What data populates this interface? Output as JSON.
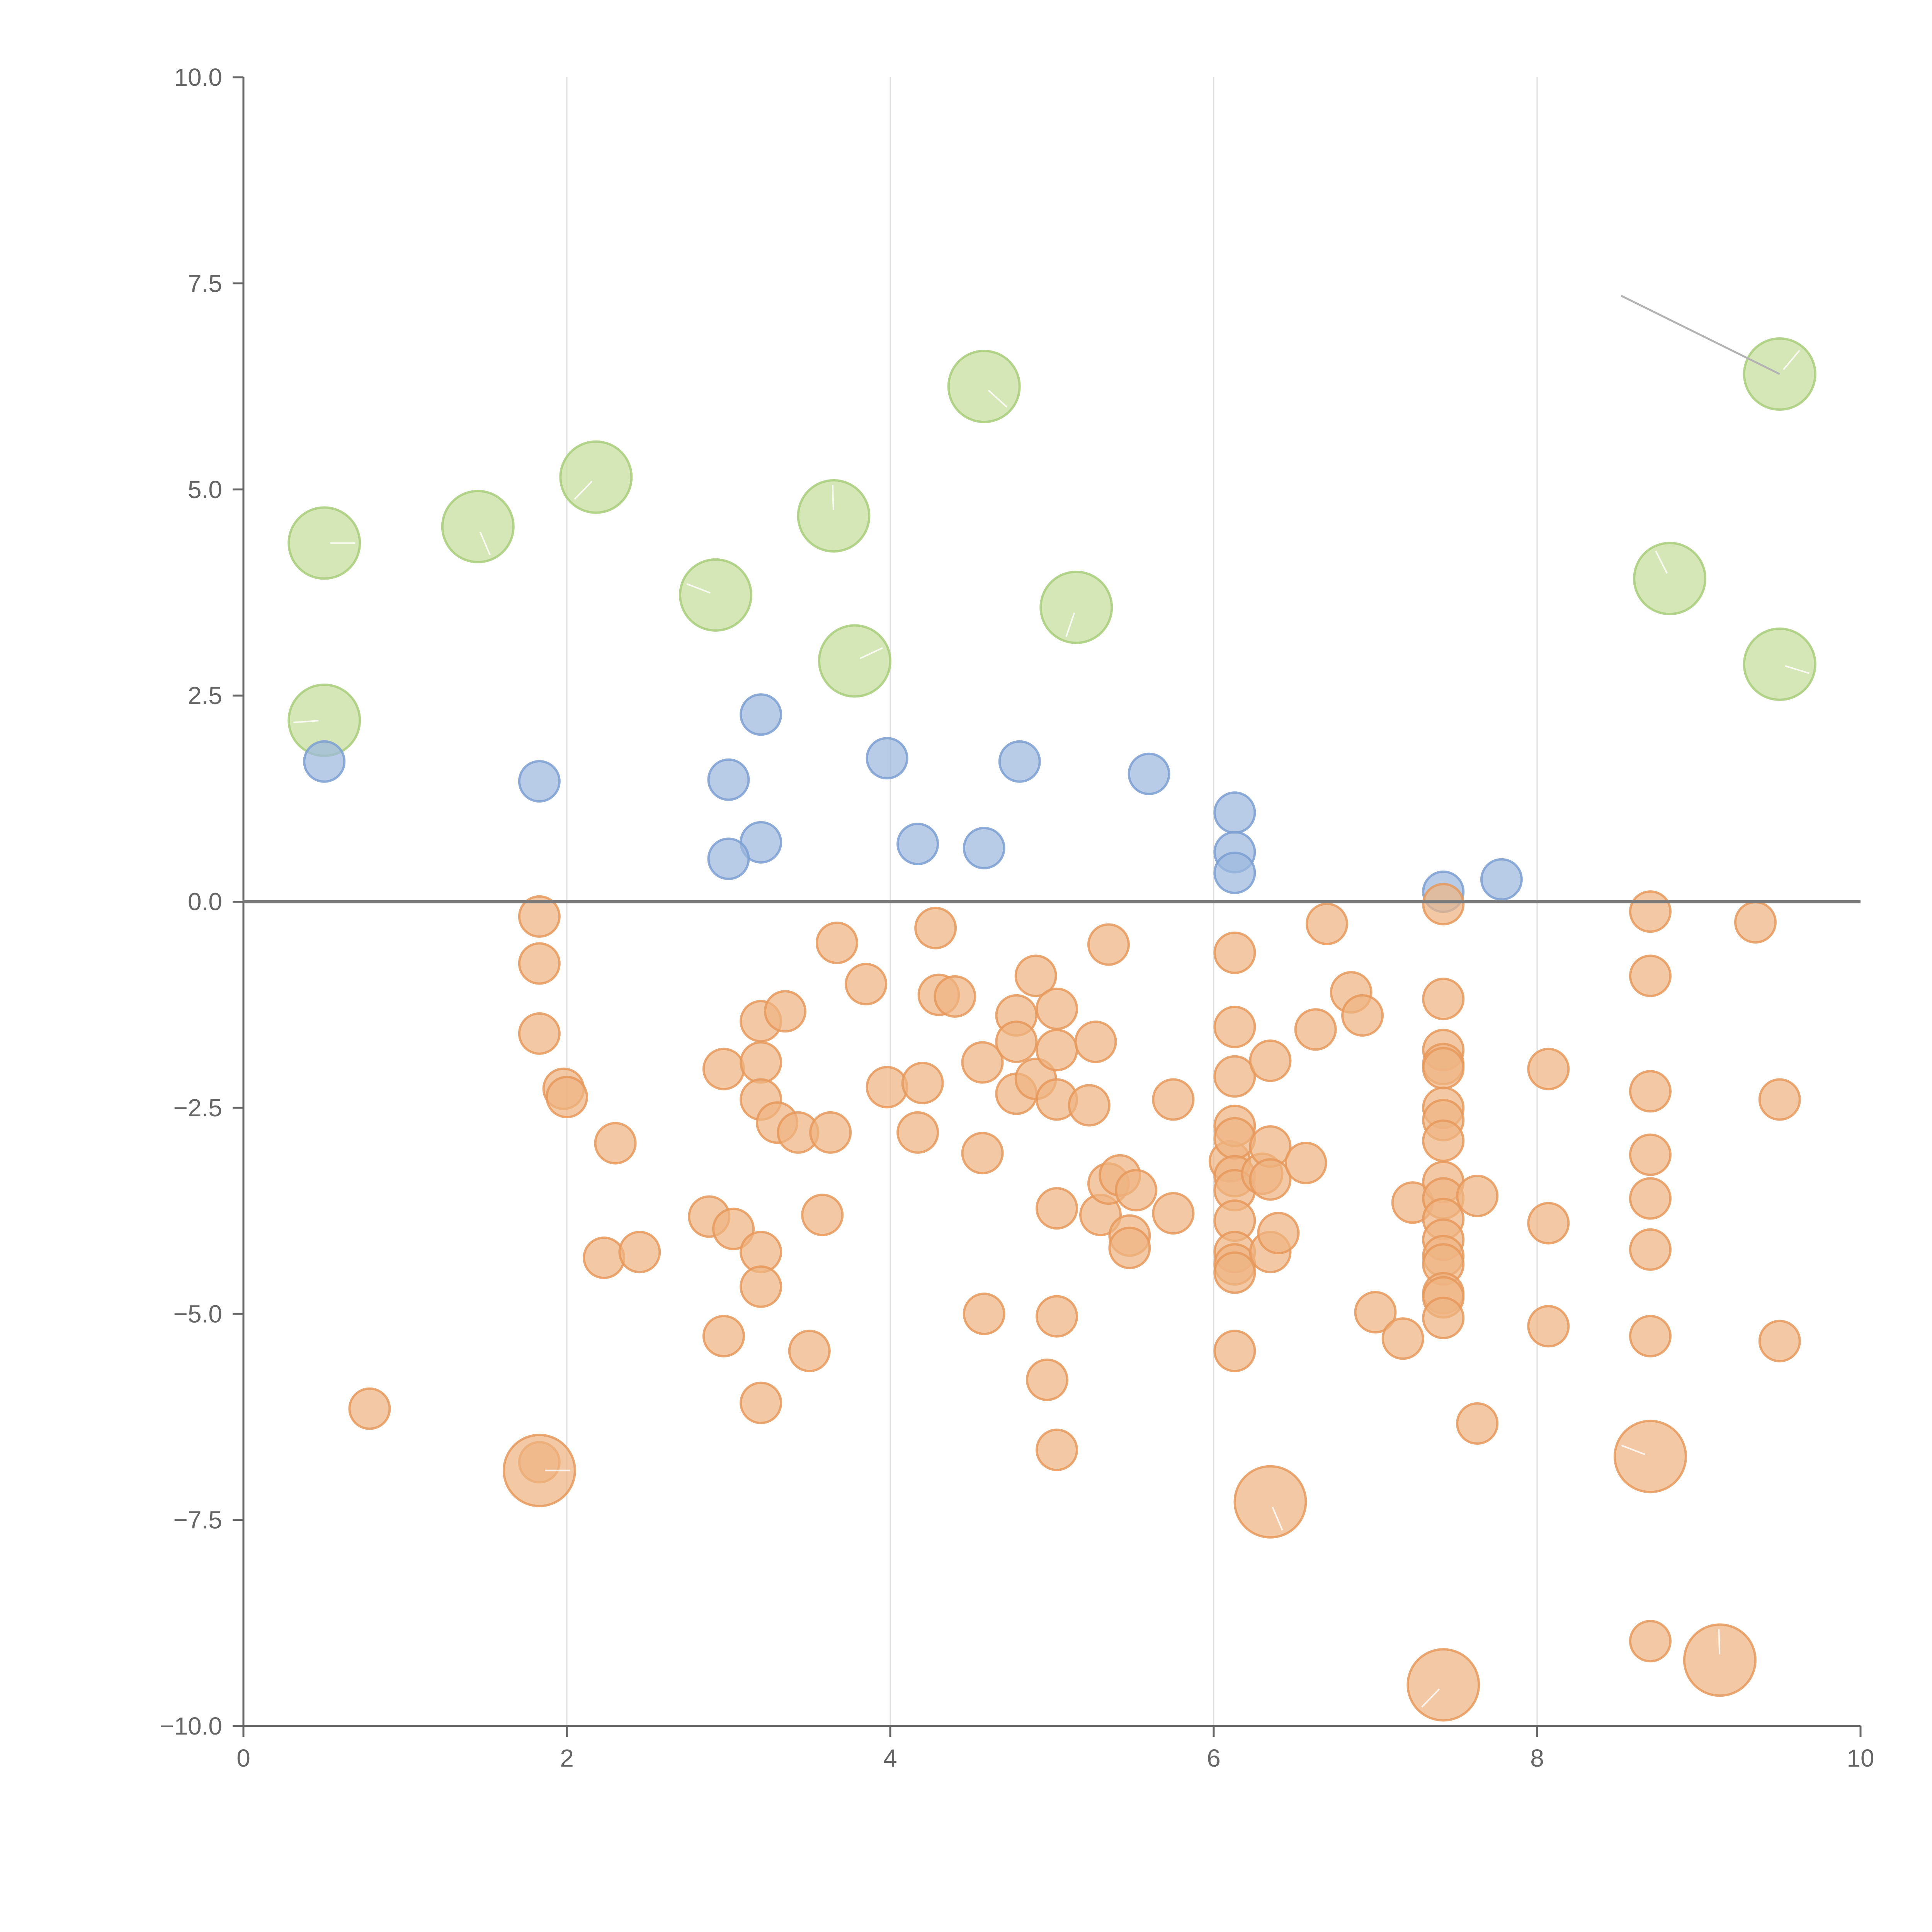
{
  "chart_data": {
    "type": "scatter",
    "title": "",
    "xlabel": "",
    "ylabel": "",
    "xlim": [
      0,
      10
    ],
    "ylim": [
      -10,
      10
    ],
    "x_ticks": [
      0,
      2,
      4,
      6,
      8,
      10
    ],
    "x_tick_labels": [
      "0",
      "2",
      "4",
      "6",
      "8",
      "10"
    ],
    "y_ticks": [
      10,
      7.5,
      5,
      2.5,
      0,
      -2.5,
      -5,
      -7.5,
      -10
    ],
    "y_tick_labels": [
      "10.0",
      "7.5",
      "5.0",
      "2.5",
      "0.0",
      "−2.5",
      "−5.0",
      "−7.5",
      "−10.0"
    ],
    "grid": "vertical lines at x ticks",
    "reference_line": {
      "y": 0
    },
    "annotation_line": {
      "from": [
        8.52,
        7.35
      ],
      "to": [
        9.5,
        6.4
      ]
    },
    "series": [
      {
        "name": "green",
        "color": "#c5dd9b",
        "stroke": "#a8cc7a",
        "size": "large",
        "points": [
          [
            0.5,
            4.35
          ],
          [
            1.45,
            4.55
          ],
          [
            2.18,
            5.15
          ],
          [
            2.92,
            3.72
          ],
          [
            3.65,
            4.68
          ],
          [
            3.78,
            2.92
          ],
          [
            4.58,
            6.25
          ],
          [
            5.15,
            3.57
          ],
          [
            0.5,
            2.2
          ],
          [
            8.82,
            3.92
          ],
          [
            9.5,
            6.4
          ],
          [
            9.5,
            2.88
          ]
        ]
      },
      {
        "name": "blue",
        "color": "#9db8df",
        "stroke": "#7b9fd1",
        "size": "small",
        "points": [
          [
            0.5,
            1.7
          ],
          [
            1.83,
            1.46
          ],
          [
            3.0,
            1.48
          ],
          [
            3.2,
            2.27
          ],
          [
            3.98,
            1.74
          ],
          [
            4.8,
            1.7
          ],
          [
            5.6,
            1.55
          ],
          [
            6.13,
            1.08
          ],
          [
            6.13,
            0.6
          ],
          [
            6.13,
            0.35
          ],
          [
            3.2,
            0.72
          ],
          [
            3.0,
            0.52
          ],
          [
            4.17,
            0.7
          ],
          [
            4.58,
            0.65
          ],
          [
            7.42,
            0.12
          ],
          [
            7.78,
            0.27
          ]
        ]
      },
      {
        "name": "orange",
        "color": "#efb482",
        "stroke": "#e6995c",
        "size": "small",
        "points": [
          [
            1.83,
            -0.18
          ],
          [
            1.83,
            -0.75
          ],
          [
            1.83,
            -1.6
          ],
          [
            1.98,
            -2.27
          ],
          [
            2.0,
            -2.37
          ],
          [
            2.3,
            -2.93
          ],
          [
            0.78,
            -6.15
          ],
          [
            1.83,
            -6.8
          ],
          [
            2.23,
            -4.32
          ],
          [
            2.45,
            -4.25
          ],
          [
            2.88,
            -3.82
          ],
          [
            3.03,
            -3.97
          ],
          [
            2.97,
            -2.03
          ],
          [
            2.97,
            -5.27
          ],
          [
            3.2,
            -4.25
          ],
          [
            3.2,
            -4.67
          ],
          [
            3.2,
            -6.08
          ],
          [
            3.2,
            -1.45
          ],
          [
            3.2,
            -1.95
          ],
          [
            3.2,
            -2.4
          ],
          [
            3.35,
            -1.33
          ],
          [
            3.3,
            -2.68
          ],
          [
            3.43,
            -2.8
          ],
          [
            3.5,
            -5.45
          ],
          [
            3.58,
            -3.8
          ],
          [
            3.63,
            -2.8
          ],
          [
            3.67,
            -0.5
          ],
          [
            3.85,
            -1.0
          ],
          [
            3.98,
            -2.25
          ],
          [
            4.17,
            -2.8
          ],
          [
            4.2,
            -2.2
          ],
          [
            4.28,
            -0.32
          ],
          [
            4.3,
            -1.13
          ],
          [
            4.4,
            -1.15
          ],
          [
            4.57,
            -1.95
          ],
          [
            4.57,
            -3.05
          ],
          [
            4.58,
            -5.0
          ],
          [
            4.78,
            -1.38
          ],
          [
            4.78,
            -1.7
          ],
          [
            4.78,
            -2.33
          ],
          [
            4.9,
            -0.9
          ],
          [
            4.9,
            -2.15
          ],
          [
            4.97,
            -5.8
          ],
          [
            5.03,
            -1.3
          ],
          [
            5.03,
            -1.8
          ],
          [
            5.03,
            -2.4
          ],
          [
            5.03,
            -3.72
          ],
          [
            5.03,
            -5.03
          ],
          [
            5.03,
            -6.65
          ],
          [
            5.23,
            -2.47
          ],
          [
            5.27,
            -1.7
          ],
          [
            5.3,
            -3.8
          ],
          [
            5.35,
            -0.52
          ],
          [
            5.35,
            -3.42
          ],
          [
            5.42,
            -3.32
          ],
          [
            5.48,
            -4.05
          ],
          [
            5.48,
            -4.2
          ],
          [
            5.52,
            -3.5
          ],
          [
            5.75,
            -2.4
          ],
          [
            5.75,
            -3.78
          ],
          [
            6.1,
            -3.15
          ],
          [
            6.13,
            -0.62
          ],
          [
            6.13,
            -1.52
          ],
          [
            6.13,
            -2.12
          ],
          [
            6.13,
            -2.72
          ],
          [
            6.13,
            -2.87
          ],
          [
            6.13,
            -3.33
          ],
          [
            6.13,
            -3.5
          ],
          [
            6.13,
            -3.87
          ],
          [
            6.13,
            -4.25
          ],
          [
            6.13,
            -4.4
          ],
          [
            6.13,
            -4.5
          ],
          [
            6.13,
            -5.45
          ],
          [
            6.3,
            -3.3
          ],
          [
            6.35,
            -1.93
          ],
          [
            6.35,
            -2.97
          ],
          [
            6.35,
            -3.37
          ],
          [
            6.35,
            -4.25
          ],
          [
            6.4,
            -4.02
          ],
          [
            6.57,
            -3.17
          ],
          [
            6.63,
            -1.55
          ],
          [
            6.7,
            -0.27
          ],
          [
            6.85,
            -1.1
          ],
          [
            6.92,
            -1.38
          ],
          [
            7.0,
            -4.98
          ],
          [
            7.17,
            -5.3
          ],
          [
            7.23,
            -3.65
          ],
          [
            7.42,
            -0.03
          ],
          [
            7.42,
            -1.18
          ],
          [
            7.42,
            -1.8
          ],
          [
            7.42,
            -1.97
          ],
          [
            7.42,
            -2.02
          ],
          [
            7.42,
            -2.5
          ],
          [
            7.42,
            -2.65
          ],
          [
            7.42,
            -2.9
          ],
          [
            7.42,
            -3.4
          ],
          [
            7.42,
            -3.6
          ],
          [
            7.42,
            -3.85
          ],
          [
            7.42,
            -4.1
          ],
          [
            7.42,
            -4.3
          ],
          [
            7.42,
            -4.4
          ],
          [
            7.42,
            -4.75
          ],
          [
            7.42,
            -4.8
          ],
          [
            7.42,
            -5.05
          ],
          [
            7.63,
            -3.57
          ],
          [
            7.63,
            -6.33
          ],
          [
            8.07,
            -2.03
          ],
          [
            8.07,
            -3.9
          ],
          [
            8.07,
            -5.15
          ],
          [
            8.7,
            -0.12
          ],
          [
            8.7,
            -0.9
          ],
          [
            8.7,
            -2.3
          ],
          [
            8.7,
            -3.07
          ],
          [
            8.7,
            -3.6
          ],
          [
            8.7,
            -4.22
          ],
          [
            8.7,
            -5.27
          ],
          [
            8.7,
            -8.97
          ],
          [
            9.35,
            -0.25
          ],
          [
            9.5,
            -2.4
          ],
          [
            9.5,
            -5.33
          ]
        ]
      },
      {
        "name": "orange-large",
        "color": "#efb482",
        "stroke": "#e6995c",
        "size": "large",
        "points": [
          [
            1.83,
            -6.9
          ],
          [
            6.35,
            -7.28
          ],
          [
            7.42,
            -9.5
          ],
          [
            8.7,
            -6.73
          ],
          [
            9.13,
            -9.2
          ]
        ]
      }
    ]
  }
}
